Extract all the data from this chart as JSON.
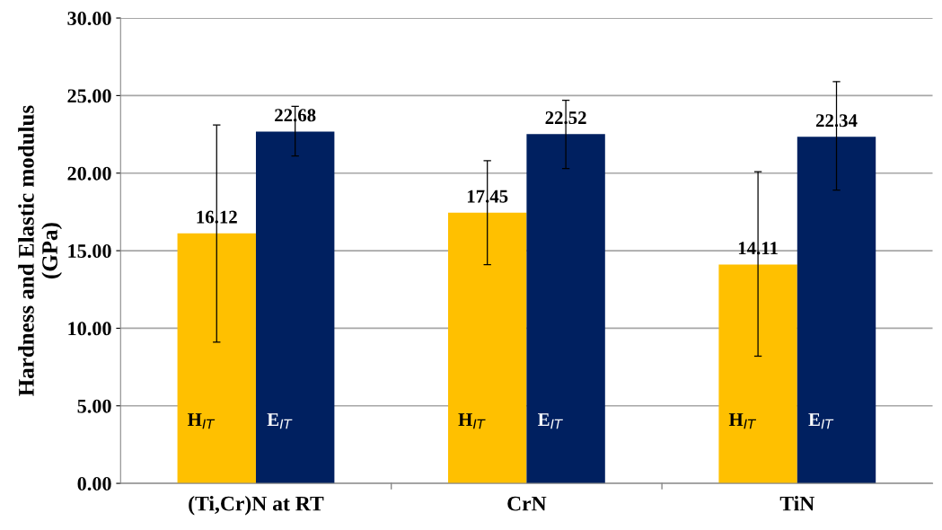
{
  "chart_data": {
    "type": "bar",
    "ylabel": "Hardness and Elastic modulus\n(GPa)",
    "categories": [
      "(Ti,Cr)N at RT",
      "CrN",
      "TiN"
    ],
    "series": [
      {
        "name": "H$_{IT}$",
        "color": "#ffc000",
        "values": [
          16.12,
          17.45,
          14.11
        ],
        "errors": [
          [
            9.1,
            23.1
          ],
          [
            14.1,
            20.8
          ],
          [
            8.2,
            20.1
          ]
        ]
      },
      {
        "name": "E$_{IT}$",
        "color": "#002060",
        "values": [
          22.68,
          22.52,
          22.34
        ],
        "errors": [
          [
            21.1,
            24.3
          ],
          [
            20.3,
            24.7
          ],
          [
            18.9,
            25.9
          ]
        ]
      }
    ],
    "ylim": [
      0,
      30
    ],
    "yticks": [
      {
        "value": 0,
        "label": "0.00"
      },
      {
        "value": 5,
        "label": "5.00"
      },
      {
        "value": 10,
        "label": "10.00"
      },
      {
        "value": 15,
        "label": "15.00"
      },
      {
        "value": 20,
        "label": "20.00"
      },
      {
        "value": 25,
        "label": "25.00"
      },
      {
        "value": 30,
        "label": "30.00"
      }
    ],
    "grid": "y",
    "data_labels": true,
    "legend": false
  }
}
